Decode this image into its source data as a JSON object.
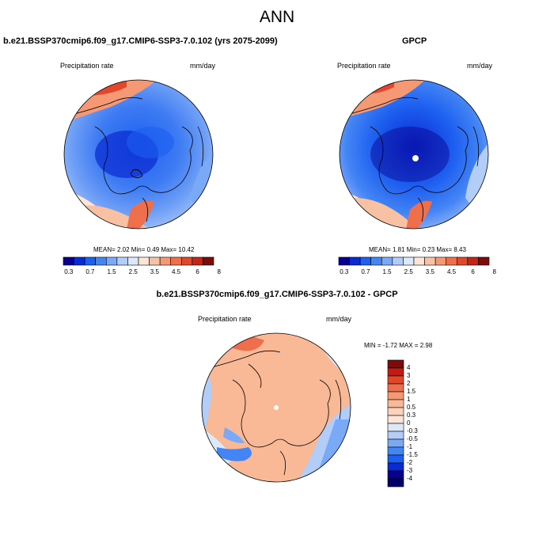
{
  "figure": {
    "title": "ANN"
  },
  "panels": [
    {
      "id": "model",
      "title": "b.e21.BSSP370cmip6.f09_g17.CMIP6-SSP3-7.0.102 (yrs 2075-2099)",
      "variable": "Precipitation rate",
      "units": "mm/day",
      "stats": {
        "mean": "2.02",
        "min": "0.49",
        "max": "10.42"
      },
      "stats_text": "MEAN=  2.02  Min=  0.49  Max=  10.42"
    },
    {
      "id": "obs",
      "title": "GPCP",
      "variable": "Precipitation rate",
      "units": "mm/day",
      "stats": {
        "mean": "1.81",
        "min": "0.23",
        "max": "8.43"
      },
      "stats_text": "MEAN=  1.81  Min=  0.23  Max=  8.43"
    },
    {
      "id": "diff",
      "title": "b.e21.BSSP370cmip6.f09_g17.CMIP6-SSP3-7.0.102 - GPCP",
      "variable": "Precipitation rate",
      "units": "mm/day",
      "stats": {
        "min": "-1.72",
        "max": "2.98"
      },
      "stats_text": "MIN =  -1.72 MAX =   2.98"
    }
  ],
  "colorbars": {
    "precip": {
      "levels": [
        "0.3",
        "0.7",
        "1.5",
        "2.5",
        "3.5",
        "4.5",
        "6",
        "8"
      ],
      "colors": [
        "#08008e",
        "#0a2ad2",
        "#1d5ff0",
        "#4485f5",
        "#7aa9f7",
        "#b2cdf8",
        "#dce9fb",
        "#fde6d7",
        "#f9c1a4",
        "#f59874",
        "#ef6e4c",
        "#e2472b",
        "#c52417",
        "#7e0b0b"
      ]
    },
    "diff": {
      "levels": [
        "4",
        "3",
        "2",
        "1.5",
        "1",
        "0.5",
        "0.3",
        "0",
        "-0.3",
        "-0.5",
        "-1",
        "-1.5",
        "-2",
        "-3",
        "-4"
      ],
      "colors": [
        "#7e0b0b",
        "#c21b12",
        "#e2472b",
        "#ef6e4c",
        "#f59874",
        "#f9b896",
        "#fcd3bd",
        "#fde6d7",
        "#dce9fb",
        "#b2cdf8",
        "#7aa9f7",
        "#4485f5",
        "#1d5ff0",
        "#0a2ad2",
        "#08008e",
        "#060066"
      ]
    }
  }
}
